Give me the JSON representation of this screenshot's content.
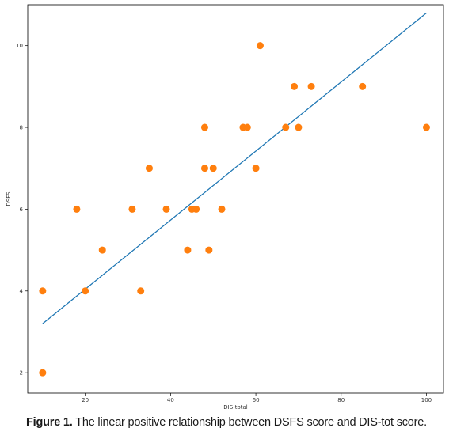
{
  "chart_data": {
    "type": "scatter",
    "title": "",
    "xlabel": "DIS-total",
    "ylabel": "DSFS",
    "xlim": [
      6.5,
      104
    ],
    "ylim": [
      1.5,
      11
    ],
    "xticks": [
      20,
      40,
      60,
      80,
      100
    ],
    "yticks": [
      2,
      4,
      6,
      8,
      10
    ],
    "grid": false,
    "legend": "none",
    "series": [
      {
        "kind": "points",
        "color": "#ff7f0e",
        "points": [
          {
            "x": 10,
            "y": 2
          },
          {
            "x": 10,
            "y": 4
          },
          {
            "x": 18,
            "y": 6
          },
          {
            "x": 20,
            "y": 4
          },
          {
            "x": 24,
            "y": 5
          },
          {
            "x": 31,
            "y": 6
          },
          {
            "x": 33,
            "y": 4
          },
          {
            "x": 35,
            "y": 7
          },
          {
            "x": 39,
            "y": 6
          },
          {
            "x": 44,
            "y": 5
          },
          {
            "x": 45,
            "y": 6
          },
          {
            "x": 46,
            "y": 6
          },
          {
            "x": 48,
            "y": 7
          },
          {
            "x": 48,
            "y": 8
          },
          {
            "x": 49,
            "y": 5
          },
          {
            "x": 50,
            "y": 7
          },
          {
            "x": 52,
            "y": 6
          },
          {
            "x": 57,
            "y": 8
          },
          {
            "x": 58,
            "y": 8
          },
          {
            "x": 60,
            "y": 7
          },
          {
            "x": 61,
            "y": 10
          },
          {
            "x": 67,
            "y": 8
          },
          {
            "x": 69,
            "y": 9
          },
          {
            "x": 70,
            "y": 8
          },
          {
            "x": 73,
            "y": 9
          },
          {
            "x": 85,
            "y": 9
          },
          {
            "x": 100,
            "y": 8
          }
        ]
      },
      {
        "kind": "fit-line",
        "color": "#1f77b4",
        "points": [
          {
            "x": 10,
            "y": 3.2
          },
          {
            "x": 100,
            "y": 10.8
          }
        ]
      }
    ]
  },
  "caption": {
    "label": "Figure 1.",
    "text": " The linear positive relationship between DSFS score and DIS-tot score."
  }
}
